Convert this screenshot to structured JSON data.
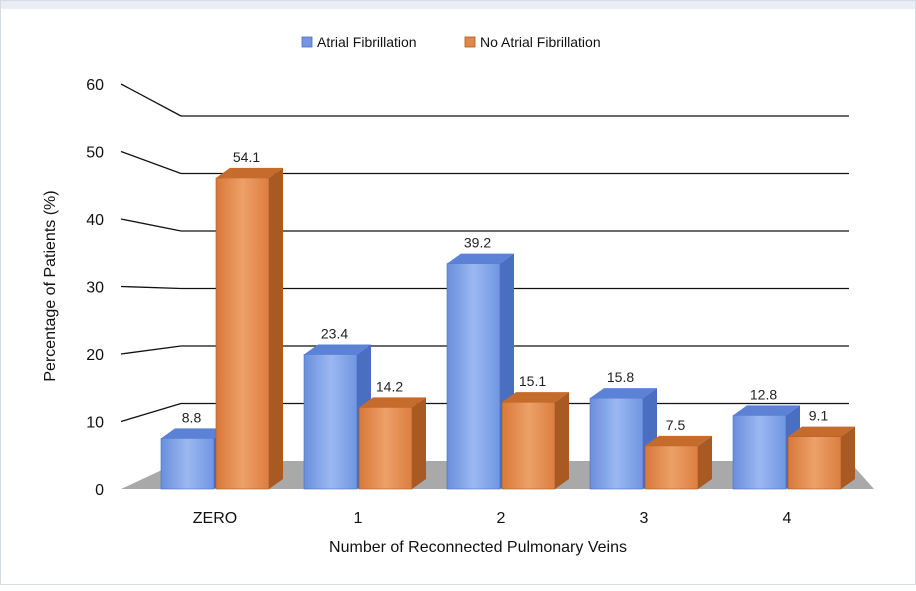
{
  "chart_data": {
    "type": "bar",
    "title": "",
    "xlabel": "Number of Reconnected Pulmonary Veins",
    "ylabel": "Percentage of Patients (%)",
    "categories": [
      "ZERO",
      "1",
      "2",
      "3",
      "4"
    ],
    "yticks": [
      0,
      10,
      20,
      30,
      40,
      50,
      60
    ],
    "ylim": [
      0,
      60
    ],
    "grid": true,
    "legend_position": "top-center",
    "series": [
      {
        "name": "Atrial Fibrillation",
        "values": [
          8.8,
          23.4,
          39.2,
          15.8,
          12.8
        ],
        "color": "#7496df"
      },
      {
        "name": "No Atrial Fibrillation",
        "values": [
          54.1,
          14.2,
          15.1,
          7.5,
          9.1
        ],
        "color": "#e0874a"
      }
    ]
  }
}
